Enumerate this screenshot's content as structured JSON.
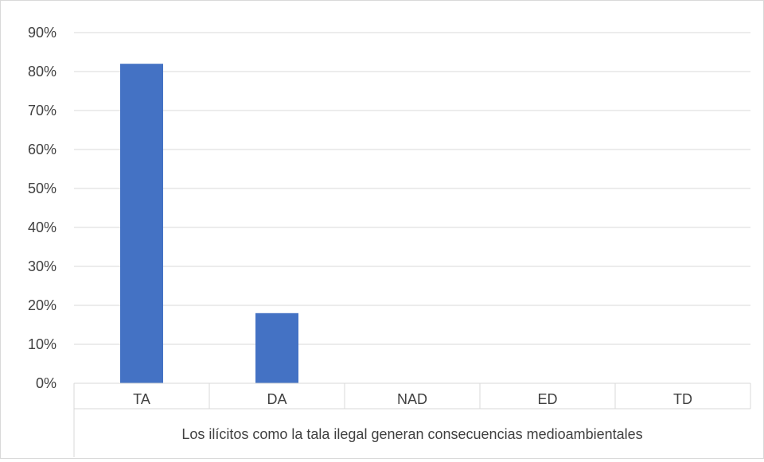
{
  "chart_data": {
    "type": "bar",
    "title": "",
    "xlabel": "",
    "ylabel": "",
    "categories": [
      "TA",
      "DA",
      "NAD",
      "ED",
      "TD"
    ],
    "series": [
      {
        "values": [
          0.82,
          0.18,
          0,
          0,
          0
        ]
      }
    ],
    "ylim": [
      0,
      0.9
    ],
    "yticks": [
      0,
      0.1,
      0.2,
      0.3,
      0.4,
      0.5,
      0.6,
      0.7,
      0.8,
      0.9
    ],
    "ytick_labels": [
      "0%",
      "10%",
      "20%",
      "30%",
      "40%",
      "50%",
      "60%",
      "70%",
      "80%",
      "90%"
    ],
    "category_axis_caption": "Los ilícitos como la tala ilegal generan consecuencias medioambientales",
    "grid": true,
    "legend": "none",
    "colors": {
      "bar": "#4472C4",
      "grid": "#d9d9d9",
      "text": "#404040"
    }
  }
}
